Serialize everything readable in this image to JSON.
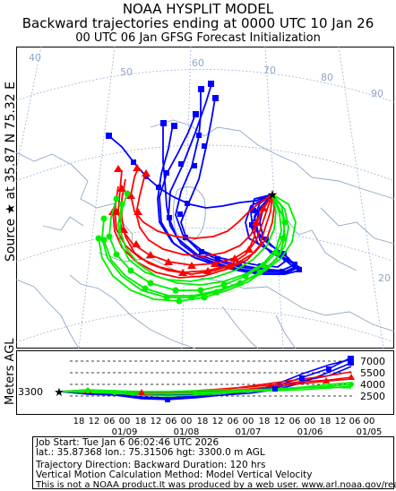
{
  "header": {
    "line1": "NOAA HYSPLIT MODEL",
    "line2": "Backward trajectories ending at 0000 UTC 10 Jan 26",
    "line3": "00 UTC 06 Jan    GFSG  Forecast Initialization"
  },
  "side_label": {
    "source_word": "Source",
    "star_glyph": "★",
    "at_word": "at",
    "lat": "35.87 N",
    "lon": "75.32 E"
  },
  "map": {
    "grid_labels": [
      "40",
      "50",
      "60",
      "70",
      "80",
      "90",
      "20"
    ]
  },
  "vertical_panel": {
    "axis_title": "Meters AGL",
    "source_height": "3300",
    "right_ticks": [
      "7000",
      "5500",
      "4000",
      "2500"
    ]
  },
  "time_axis": {
    "hours": [
      "18",
      "12",
      "06",
      "00",
      "18",
      "12",
      "06",
      "00",
      "18",
      "12",
      "06",
      "00",
      "18",
      "12",
      "06",
      "00",
      "18",
      "12",
      "06",
      "00"
    ],
    "dates": [
      "01/09",
      "01/08",
      "01/07",
      "01/06",
      "01/05"
    ]
  },
  "footer": {
    "line1": "Job Start: Tue Jan  6 06:02:46 UTC 2026",
    "line2": "lat.: 35.87368   lon.: 75.31506   hgt: 3300.0 m AGL",
    "line3": "Trajectory Direction: Backward        Duration: 120 hrs",
    "line4": "Vertical Motion Calculation Method: Model Vertical Velocity",
    "line5": "This is not a NOAA product.It was produced by a web user. www.arl.noaa.gov/ready"
  },
  "colors": {
    "red": "#ff0000",
    "blue": "#0000ff",
    "green": "#00ee00",
    "map_lines": "#8fa6c8",
    "grid": "#9db3d6"
  }
}
